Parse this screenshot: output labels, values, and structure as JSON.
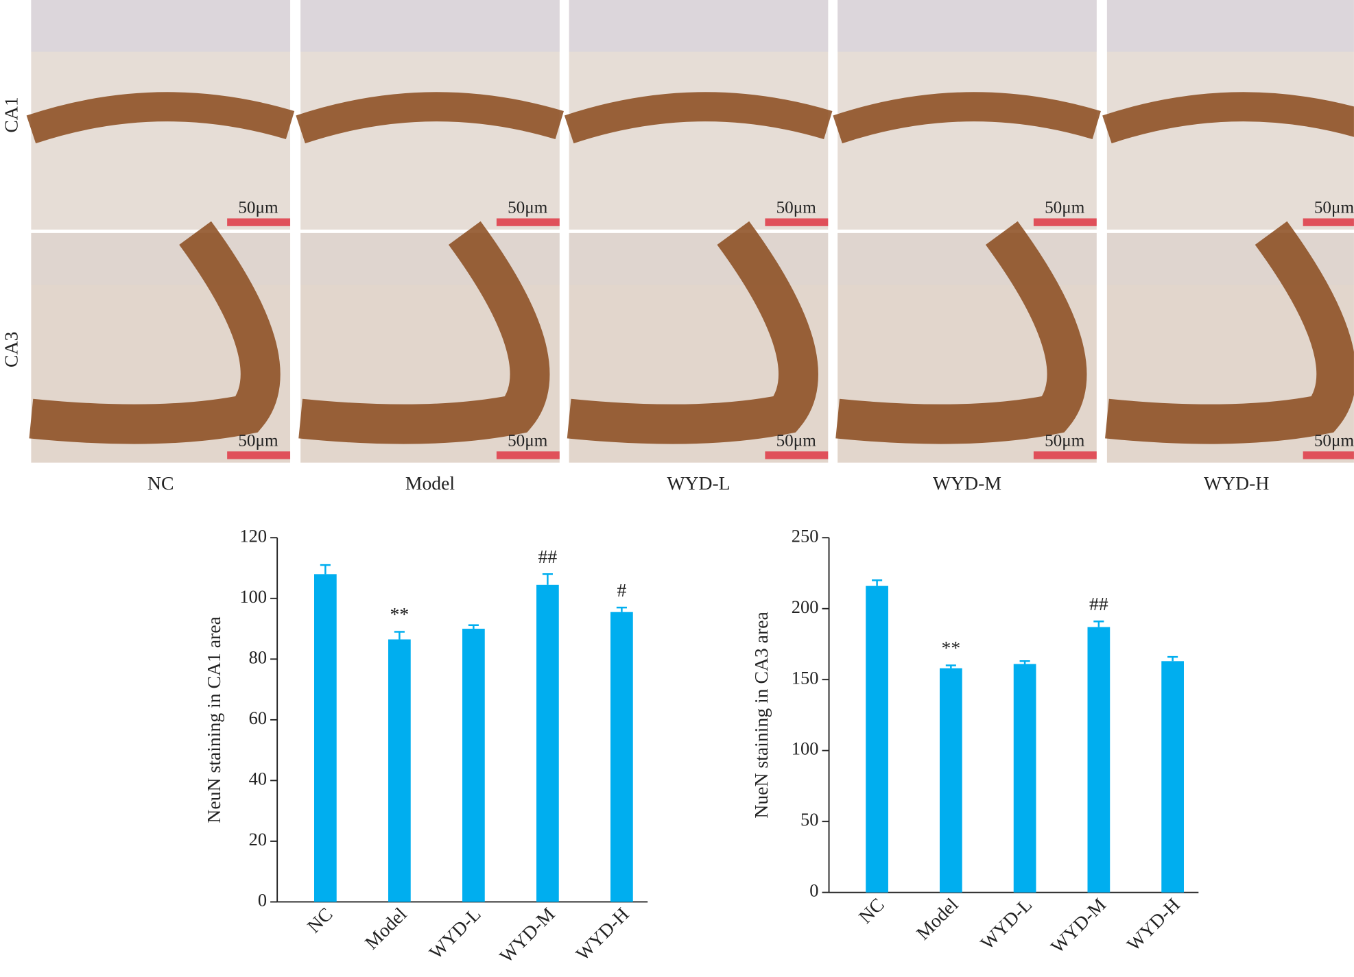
{
  "panels": {
    "row_labels": [
      "CA1",
      "CA3"
    ],
    "column_labels": [
      "NC",
      "Model",
      "WYD-L",
      "WYD-M",
      "WYD-H"
    ],
    "scale_bar_label": "50μm"
  },
  "chart_data": [
    {
      "type": "bar",
      "ylabel": "NeuN staining in CA1 area",
      "categories": [
        "NC",
        "Model",
        "WYD-L",
        "WYD-M",
        "WYD-H"
      ],
      "values": [
        108,
        86.5,
        90,
        104.5,
        95.5
      ],
      "errors": [
        3,
        2.5,
        1.2,
        3.5,
        1.5
      ],
      "annotations": [
        null,
        "**",
        null,
        "##",
        "#"
      ],
      "color": "#00aeef",
      "ylim": [
        0,
        120
      ],
      "yticks": [
        0,
        20,
        40,
        60,
        80,
        100,
        120
      ]
    },
    {
      "type": "bar",
      "ylabel": "NueN staining in CA3 area",
      "categories": [
        "NC",
        "Model",
        "WYD-L",
        "WYD-M",
        "WYD-H"
      ],
      "values": [
        216,
        158,
        161,
        187,
        163
      ],
      "errors": [
        4,
        2,
        2,
        4,
        3
      ],
      "annotations": [
        null,
        "**",
        null,
        "##",
        null
      ],
      "color": "#00aeef",
      "ylim": [
        0,
        250
      ],
      "yticks": [
        0,
        50,
        100,
        150,
        200,
        250
      ]
    }
  ]
}
